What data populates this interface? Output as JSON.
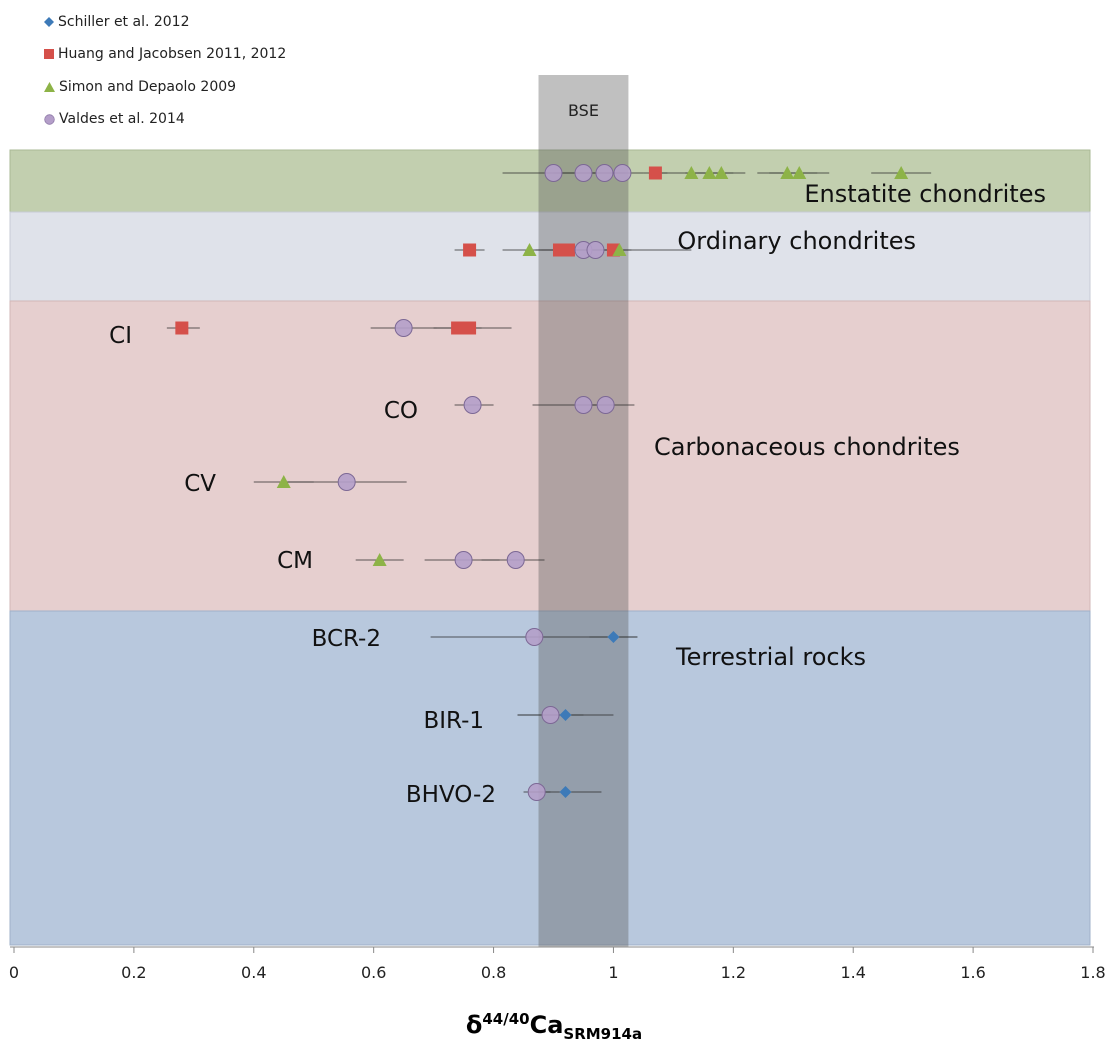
{
  "chart_data": {
    "type": "scatter",
    "xlabel_symbol": "δ",
    "xlabel_sup": "44/40",
    "xlabel_main": "Ca",
    "xlabel_sub": "SRM914a",
    "xlim": [
      0,
      1.8
    ],
    "xticks": [
      "0",
      "0.2",
      "0.4",
      "0.6",
      "0.8",
      "1",
      "1.2",
      "1.4",
      "1.6",
      "1.8"
    ],
    "legend": [
      {
        "name": "Schiller et al. 2012",
        "marker": "diamond",
        "color": "#3d7ab8"
      },
      {
        "name": "Huang and Jacobsen 2011, 2012",
        "marker": "square",
        "color": "#d5504a"
      },
      {
        "name": "Simon and Depaolo 2009",
        "marker": "triangle",
        "color": "#8db347"
      },
      {
        "name": "Valdes et al. 2014",
        "marker": "circle",
        "color": "#b49ec9"
      }
    ],
    "bse_band": {
      "label": "BSE",
      "x": [
        0.875,
        1.025
      ]
    },
    "groups": [
      {
        "label": "Enstatite chondrites",
        "color": "#c2cfaf"
      },
      {
        "label": "Ordinary chondrites",
        "color": "#dfe2ea"
      },
      {
        "label": "Carbonaceous chondrites",
        "color": "#e6cfcf"
      },
      {
        "label": "Terrestrial rocks",
        "color": "#b8c8dd"
      }
    ],
    "samples": [
      "CI",
      "CO",
      "CV",
      "CM",
      "BCR-2",
      "BIR-1",
      "BHVO-2"
    ],
    "points": [
      {
        "row": "Enstatite",
        "series": "Valdes et al. 2014",
        "x": 0.9,
        "xerr": [
          0.815,
          0.985
        ]
      },
      {
        "row": "Enstatite",
        "series": "Valdes et al. 2014",
        "x": 0.95,
        "xerr": [
          0.9,
          1.0
        ]
      },
      {
        "row": "Enstatite",
        "series": "Valdes et al. 2014",
        "x": 0.985,
        "xerr": [
          0.95,
          1.02
        ]
      },
      {
        "row": "Enstatite",
        "series": "Valdes et al. 2014",
        "x": 1.015,
        "xerr": [
          0.98,
          1.05
        ]
      },
      {
        "row": "Enstatite",
        "series": "Huang and Jacobsen 2011, 2012",
        "x": 1.07,
        "xerr": [
          1.05,
          1.09
        ]
      },
      {
        "row": "Enstatite",
        "series": "Simon and Depaolo 2009",
        "x": 1.13,
        "xerr": [
          1.08,
          1.18
        ]
      },
      {
        "row": "Enstatite",
        "series": "Simon and Depaolo 2009",
        "x": 1.16,
        "xerr": [
          1.12,
          1.2
        ]
      },
      {
        "row": "Enstatite",
        "series": "Simon and Depaolo 2009",
        "x": 1.18,
        "xerr": [
          1.14,
          1.22
        ]
      },
      {
        "row": "Enstatite",
        "series": "Simon and Depaolo 2009",
        "x": 1.29,
        "xerr": [
          1.24,
          1.34
        ]
      },
      {
        "row": "Enstatite",
        "series": "Simon and Depaolo 2009",
        "x": 1.31,
        "xerr": [
          1.26,
          1.36
        ]
      },
      {
        "row": "Enstatite",
        "series": "Simon and Depaolo 2009",
        "x": 1.48,
        "xerr": [
          1.43,
          1.53
        ]
      },
      {
        "row": "Ordinary",
        "series": "Huang and Jacobsen 2011, 2012",
        "x": 0.76,
        "xerr": [
          0.735,
          0.785
        ]
      },
      {
        "row": "Ordinary",
        "series": "Simon and Depaolo 2009",
        "x": 0.86,
        "xerr": [
          0.815,
          0.905
        ]
      },
      {
        "row": "Ordinary",
        "series": "Huang and Jacobsen 2011, 2012",
        "x": 0.91,
        "xerr": [
          0.88,
          0.94
        ]
      },
      {
        "row": "Ordinary",
        "series": "Huang and Jacobsen 2011, 2012",
        "x": 0.925,
        "xerr": [
          0.9,
          0.95
        ]
      },
      {
        "row": "Ordinary",
        "series": "Valdes et al. 2014",
        "x": 0.95,
        "xerr": [
          0.9,
          1.0
        ]
      },
      {
        "row": "Ordinary",
        "series": "Valdes et al. 2014",
        "x": 0.97,
        "xerr": [
          0.87,
          1.13
        ]
      },
      {
        "row": "Ordinary",
        "series": "Huang and Jacobsen 2011, 2012",
        "x": 1.0,
        "xerr": [
          0.98,
          1.02
        ]
      },
      {
        "row": "Ordinary",
        "series": "Simon and Depaolo 2009",
        "x": 1.01,
        "xerr": [
          0.99,
          1.03
        ]
      },
      {
        "row": "CI",
        "series": "Huang and Jacobsen 2011, 2012",
        "x": 0.28,
        "xerr": [
          0.255,
          0.31
        ]
      },
      {
        "row": "CI",
        "series": "Valdes et al. 2014",
        "x": 0.65,
        "xerr": [
          0.595,
          0.705
        ]
      },
      {
        "row": "CI",
        "series": "Huang and Jacobsen 2011, 2012",
        "x": 0.74,
        "xerr": [
          0.7,
          0.78
        ]
      },
      {
        "row": "CI",
        "series": "Huang and Jacobsen 2011, 2012",
        "x": 0.76,
        "xerr": [
          0.7,
          0.83
        ]
      },
      {
        "row": "CO",
        "series": "Valdes et al. 2014",
        "x": 0.765,
        "xerr": [
          0.735,
          0.8
        ]
      },
      {
        "row": "CO",
        "series": "Valdes et al. 2014",
        "x": 0.95,
        "xerr": [
          0.865,
          1.0
        ]
      },
      {
        "row": "CO",
        "series": "Valdes et al. 2014",
        "x": 0.987,
        "xerr": [
          0.94,
          1.035
        ]
      },
      {
        "row": "CV",
        "series": "Simon and Depaolo 2009",
        "x": 0.45,
        "xerr": [
          0.4,
          0.5
        ]
      },
      {
        "row": "CV",
        "series": "Valdes et al. 2014",
        "x": 0.555,
        "xerr": [
          0.455,
          0.655
        ]
      },
      {
        "row": "CM",
        "series": "Simon and Depaolo 2009",
        "x": 0.61,
        "xerr": [
          0.57,
          0.65
        ]
      },
      {
        "row": "CM",
        "series": "Valdes et al. 2014",
        "x": 0.75,
        "xerr": [
          0.685,
          0.81
        ]
      },
      {
        "row": "CM",
        "series": "Valdes et al. 2014",
        "x": 0.837,
        "xerr": [
          0.78,
          0.885
        ]
      },
      {
        "row": "BCR-2",
        "series": "Valdes et al. 2014",
        "x": 0.868,
        "xerr": [
          0.695,
          1.04
        ]
      },
      {
        "row": "BCR-2",
        "series": "Schiller et al. 2012",
        "x": 1.0,
        "xerr": [
          0.96,
          1.04
        ]
      },
      {
        "row": "BIR-1",
        "series": "Valdes et al. 2014",
        "x": 0.895,
        "xerr": [
          0.84,
          0.95
        ]
      },
      {
        "row": "BIR-1",
        "series": "Schiller et al. 2012",
        "x": 0.92,
        "xerr": [
          0.84,
          1.0
        ]
      },
      {
        "row": "BHVO-2",
        "series": "Valdes et al. 2014",
        "x": 0.872,
        "xerr": [
          0.85,
          0.895
        ]
      },
      {
        "row": "BHVO-2",
        "series": "Schiller et al. 2012",
        "x": 0.92,
        "xerr": [
          0.86,
          0.98
        ]
      }
    ]
  }
}
